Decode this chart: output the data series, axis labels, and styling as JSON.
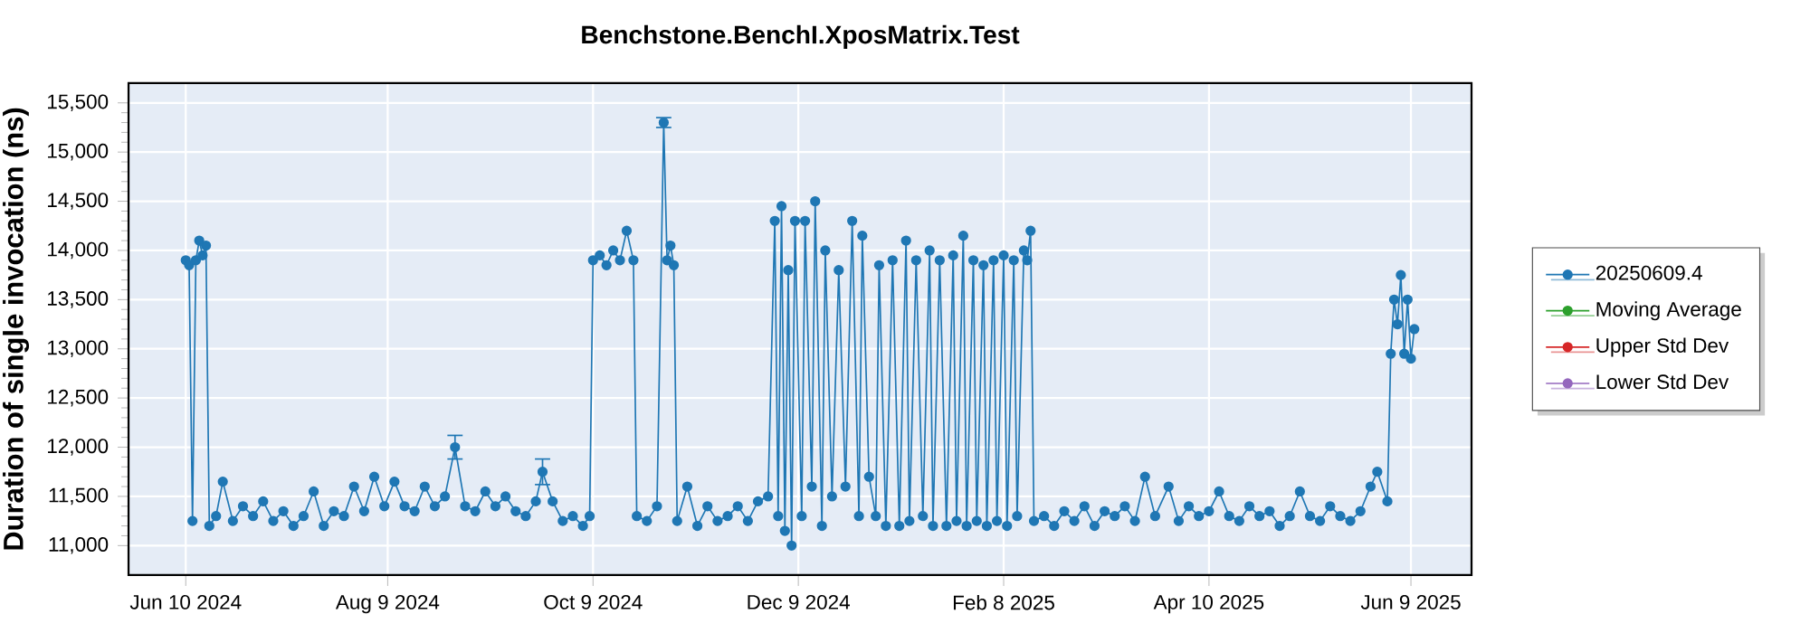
{
  "chart_data": {
    "type": "line",
    "title": "Benchstone.BenchI.XposMatrix.Test",
    "ylabel": "Duration of single invocation (ns)",
    "x": [
      "2024-06-10",
      "2024-06-11",
      "2024-06-12",
      "2024-06-13",
      "2024-06-14",
      "2024-06-15",
      "2024-06-16",
      "2024-06-17",
      "2024-06-19",
      "2024-06-21",
      "2024-06-24",
      "2024-06-27",
      "2024-06-30",
      "2024-07-03",
      "2024-07-06",
      "2024-07-09",
      "2024-07-12",
      "2024-07-15",
      "2024-07-18",
      "2024-07-21",
      "2024-07-24",
      "2024-07-27",
      "2024-07-30",
      "2024-08-02",
      "2024-08-05",
      "2024-08-08",
      "2024-08-11",
      "2024-08-14",
      "2024-08-17",
      "2024-08-20",
      "2024-08-23",
      "2024-08-26",
      "2024-08-29",
      "2024-09-01",
      "2024-09-04",
      "2024-09-07",
      "2024-09-10",
      "2024-09-13",
      "2024-09-16",
      "2024-09-19",
      "2024-09-22",
      "2024-09-24",
      "2024-09-27",
      "2024-09-30",
      "2024-10-03",
      "2024-10-06",
      "2024-10-08",
      "2024-10-09",
      "2024-10-11",
      "2024-10-13",
      "2024-10-15",
      "2024-10-17",
      "2024-10-19",
      "2024-10-21",
      "2024-10-22",
      "2024-10-25",
      "2024-10-28",
      "2024-10-30",
      "2024-10-31",
      "2024-11-01",
      "2024-11-02",
      "2024-11-03",
      "2024-11-06",
      "2024-11-09",
      "2024-11-12",
      "2024-11-15",
      "2024-11-18",
      "2024-11-21",
      "2024-11-24",
      "2024-11-27",
      "2024-11-30",
      "2024-12-02",
      "2024-12-03",
      "2024-12-04",
      "2024-12-05",
      "2024-12-06",
      "2024-12-07",
      "2024-12-08",
      "2024-12-10",
      "2024-12-11",
      "2024-12-13",
      "2024-12-14",
      "2024-12-16",
      "2024-12-17",
      "2024-12-19",
      "2024-12-21",
      "2024-12-23",
      "2024-12-25",
      "2024-12-27",
      "2024-12-28",
      "2024-12-30",
      "2025-01-01",
      "2025-01-02",
      "2025-01-04",
      "2025-01-06",
      "2025-01-08",
      "2025-01-10",
      "2025-01-11",
      "2025-01-13",
      "2025-01-15",
      "2025-01-17",
      "2025-01-18",
      "2025-01-20",
      "2025-01-22",
      "2025-01-24",
      "2025-01-25",
      "2025-01-27",
      "2025-01-28",
      "2025-01-30",
      "2025-01-31",
      "2025-02-02",
      "2025-02-03",
      "2025-02-05",
      "2025-02-06",
      "2025-02-08",
      "2025-02-09",
      "2025-02-11",
      "2025-02-12",
      "2025-02-14",
      "2025-02-15",
      "2025-02-16",
      "2025-02-17",
      "2025-02-20",
      "2025-02-23",
      "2025-02-26",
      "2025-03-01",
      "2025-03-04",
      "2025-03-07",
      "2025-03-10",
      "2025-03-13",
      "2025-03-16",
      "2025-03-19",
      "2025-03-22",
      "2025-03-25",
      "2025-03-29",
      "2025-04-01",
      "2025-04-04",
      "2025-04-07",
      "2025-04-10",
      "2025-04-13",
      "2025-04-16",
      "2025-04-19",
      "2025-04-22",
      "2025-04-25",
      "2025-04-28",
      "2025-05-01",
      "2025-05-04",
      "2025-05-07",
      "2025-05-10",
      "2025-05-13",
      "2025-05-16",
      "2025-05-19",
      "2025-05-22",
      "2025-05-25",
      "2025-05-28",
      "2025-05-30",
      "2025-06-02",
      "2025-06-03",
      "2025-06-04",
      "2025-06-05",
      "2025-06-06",
      "2025-06-07",
      "2025-06-08",
      "2025-06-09",
      "2025-06-10"
    ],
    "series": [
      {
        "name": "20250609.4",
        "color": "#1f77b4",
        "values": [
          13900,
          13850,
          11250,
          13900,
          14100,
          13950,
          14050,
          11200,
          11300,
          11650,
          11250,
          11400,
          11300,
          11450,
          11250,
          11350,
          11200,
          11300,
          11550,
          11200,
          11350,
          11300,
          11600,
          11350,
          11700,
          11400,
          11650,
          11400,
          11350,
          11600,
          11400,
          11500,
          12000,
          11400,
          11350,
          11550,
          11400,
          11500,
          11350,
          11300,
          11450,
          11750,
          11450,
          11250,
          11300,
          11200,
          11300,
          13900,
          13950,
          13850,
          14000,
          13900,
          14200,
          13900,
          11300,
          11250,
          11400,
          15300,
          13900,
          14050,
          13850,
          11250,
          11600,
          11200,
          11400,
          11250,
          11300,
          11400,
          11250,
          11450,
          11500,
          14300,
          11300,
          14450,
          11150,
          13800,
          11000,
          14300,
          11300,
          14300,
          11600,
          14500,
          11200,
          14000,
          11500,
          13800,
          11600,
          14300,
          11300,
          14150,
          11700,
          11300,
          13850,
          11200,
          13900,
          11200,
          14100,
          11250,
          13900,
          11300,
          14000,
          11200,
          13900,
          11200,
          13950,
          11250,
          14150,
          11200,
          13900,
          11250,
          13850,
          11200,
          13900,
          11250,
          13950,
          11200,
          13900,
          11300,
          14000,
          13900,
          14200,
          11250,
          11300,
          11200,
          11350,
          11250,
          11400,
          11200,
          11350,
          11300,
          11400,
          11250,
          11700,
          11300,
          11600,
          11250,
          11400,
          11300,
          11350,
          11550,
          11300,
          11250,
          11400,
          11300,
          11350,
          11200,
          11300,
          11550,
          11300,
          11250,
          11400,
          11300,
          11250,
          11350,
          11600,
          11750,
          11450,
          12950,
          13500,
          13250,
          13750,
          12950,
          13500,
          12900,
          13200
        ],
        "errors": [
          null,
          null,
          null,
          null,
          null,
          null,
          null,
          null,
          null,
          null,
          null,
          null,
          null,
          null,
          null,
          null,
          null,
          null,
          null,
          null,
          null,
          null,
          null,
          null,
          null,
          null,
          null,
          null,
          null,
          null,
          null,
          null,
          120,
          null,
          null,
          null,
          null,
          null,
          null,
          null,
          null,
          130,
          null,
          null,
          null,
          null,
          null,
          null,
          null,
          null,
          null,
          null,
          null,
          null,
          null,
          null,
          null,
          50,
          null,
          null,
          null,
          null,
          null,
          null,
          null,
          null,
          null,
          null,
          null,
          null,
          null,
          null,
          null,
          null,
          null,
          null,
          null,
          null,
          null,
          null,
          null,
          null,
          null,
          null,
          null,
          null,
          null,
          null,
          null,
          null,
          null,
          null,
          null,
          null,
          null,
          null,
          null,
          null,
          null,
          null,
          null,
          null,
          null,
          null,
          null,
          null,
          null,
          null,
          null,
          null,
          null,
          null,
          null,
          null,
          null,
          null,
          null,
          null,
          null,
          null,
          null,
          null,
          null,
          null,
          null,
          null,
          null,
          null,
          null,
          null,
          null,
          null,
          null,
          null,
          null,
          null,
          null,
          null,
          null,
          null,
          null,
          null,
          null,
          null,
          null,
          null,
          null,
          null,
          null,
          null,
          null,
          null,
          null,
          null,
          null,
          null,
          null,
          null,
          null,
          null,
          null,
          null,
          null,
          null,
          null
        ]
      },
      {
        "name": "Moving Average",
        "color": "#2ca02c",
        "values": [
          null,
          null,
          null,
          null,
          null,
          null,
          null,
          null,
          null,
          null,
          null,
          null,
          null,
          null,
          null,
          null,
          null,
          null,
          null,
          null,
          null,
          null,
          null,
          null,
          null,
          null,
          null,
          null,
          null,
          null,
          null,
          null,
          null,
          null,
          null,
          null,
          null,
          null,
          null,
          null,
          null,
          null,
          null,
          null,
          null,
          null,
          null,
          null,
          null,
          null,
          null,
          null,
          null,
          null,
          null,
          null,
          null,
          null,
          null,
          null,
          null,
          null,
          null,
          null,
          null,
          null,
          null,
          null,
          null,
          null,
          null,
          null,
          null,
          null,
          null,
          null,
          null,
          null,
          null,
          null,
          null,
          null,
          null,
          null,
          null,
          null,
          null,
          null,
          null,
          null,
          null,
          null,
          null,
          null,
          null,
          null,
          null,
          null,
          null,
          null,
          null,
          null,
          null,
          null,
          null,
          null,
          null,
          null,
          null,
          null,
          null,
          null,
          null,
          null,
          null,
          null,
          null,
          null,
          null,
          null,
          null,
          null,
          null,
          null,
          null,
          null,
          null,
          null,
          null,
          null,
          null,
          null,
          null,
          null,
          null,
          null,
          null,
          null,
          null,
          null,
          null,
          null,
          null,
          null,
          null,
          null,
          null,
          null,
          null,
          null,
          null,
          null,
          null,
          null,
          null,
          null,
          null,
          null,
          null,
          null,
          null,
          null,
          null,
          null,
          null
        ]
      },
      {
        "name": "Upper Std Dev",
        "color": "#d62728",
        "values": [
          null,
          null,
          null,
          null,
          null,
          null,
          null,
          null,
          null,
          null,
          null,
          null,
          null,
          null,
          null,
          null,
          null,
          null,
          null,
          null,
          null,
          null,
          null,
          null,
          null,
          null,
          null,
          null,
          null,
          null,
          null,
          null,
          null,
          null,
          null,
          null,
          null,
          null,
          null,
          null,
          null,
          null,
          null,
          null,
          null,
          null,
          null,
          null,
          null,
          null,
          null,
          null,
          null,
          null,
          null,
          null,
          null,
          null,
          null,
          null,
          null,
          null,
          null,
          null,
          null,
          null,
          null,
          null,
          null,
          null,
          null,
          null,
          null,
          null,
          null,
          null,
          null,
          null,
          null,
          null,
          null,
          null,
          null,
          null,
          null,
          null,
          null,
          null,
          null,
          null,
          null,
          null,
          null,
          null,
          null,
          null,
          null,
          null,
          null,
          null,
          null,
          null,
          null,
          null,
          null,
          null,
          null,
          null,
          null,
          null,
          null,
          null,
          null,
          null,
          null,
          null,
          null,
          null,
          null,
          null,
          null,
          null,
          null,
          null,
          null,
          null,
          null,
          null,
          null,
          null,
          null,
          null,
          null,
          null,
          null,
          null,
          null,
          null,
          null,
          null,
          null,
          null,
          null,
          null,
          null,
          null,
          null,
          null,
          null,
          null,
          null,
          null,
          null,
          null,
          null,
          null,
          null,
          null,
          null,
          null,
          null,
          null,
          null,
          null,
          null
        ]
      },
      {
        "name": "Lower Std Dev",
        "color": "#9467bd",
        "values": [
          null,
          null,
          null,
          null,
          null,
          null,
          null,
          null,
          null,
          null,
          null,
          null,
          null,
          null,
          null,
          null,
          null,
          null,
          null,
          null,
          null,
          null,
          null,
          null,
          null,
          null,
          null,
          null,
          null,
          null,
          null,
          null,
          null,
          null,
          null,
          null,
          null,
          null,
          null,
          null,
          null,
          null,
          null,
          null,
          null,
          null,
          null,
          null,
          null,
          null,
          null,
          null,
          null,
          null,
          null,
          null,
          null,
          null,
          null,
          null,
          null,
          null,
          null,
          null,
          null,
          null,
          null,
          null,
          null,
          null,
          null,
          null,
          null,
          null,
          null,
          null,
          null,
          null,
          null,
          null,
          null,
          null,
          null,
          null,
          null,
          null,
          null,
          null,
          null,
          null,
          null,
          null,
          null,
          null,
          null,
          null,
          null,
          null,
          null,
          null,
          null,
          null,
          null,
          null,
          null,
          null,
          null,
          null,
          null,
          null,
          null,
          null,
          null,
          null,
          null,
          null,
          null,
          null,
          null,
          null,
          null,
          null,
          null,
          null,
          null,
          null,
          null,
          null,
          null,
          null,
          null,
          null,
          null,
          null,
          null,
          null,
          null,
          null,
          null,
          null,
          null,
          null,
          null,
          null,
          null,
          null,
          null,
          null,
          null,
          null,
          null,
          null,
          null,
          null,
          null,
          null,
          null,
          null,
          null,
          null,
          null,
          null,
          null,
          null,
          null
        ]
      }
    ],
    "xlim": [
      "2024-05-24",
      "2025-06-27"
    ],
    "xticks": [
      {
        "value": "2024-06-10",
        "label": "Jun 10 2024"
      },
      {
        "value": "2024-08-09",
        "label": "Aug 9 2024"
      },
      {
        "value": "2024-10-09",
        "label": "Oct 9 2024"
      },
      {
        "value": "2024-12-09",
        "label": "Dec 9 2024"
      },
      {
        "value": "2025-02-08",
        "label": "Feb 8 2025"
      },
      {
        "value": "2025-04-10",
        "label": "Apr 10 2025"
      },
      {
        "value": "2025-06-09",
        "label": "Jun 9 2025"
      }
    ],
    "ylim": [
      10700,
      15700
    ],
    "yticks": [
      {
        "value": 11000,
        "label": "11,000"
      },
      {
        "value": 11500,
        "label": "11,500"
      },
      {
        "value": 12000,
        "label": "12,000"
      },
      {
        "value": 12500,
        "label": "12,500"
      },
      {
        "value": 13000,
        "label": "13,000"
      },
      {
        "value": 13500,
        "label": "13,500"
      },
      {
        "value": 14000,
        "label": "14,000"
      },
      {
        "value": 14500,
        "label": "14,500"
      },
      {
        "value": 15000,
        "label": "15,000"
      },
      {
        "value": 15500,
        "label": "15,500"
      }
    ],
    "grid": true,
    "legend": "right",
    "marker": "circle",
    "line_style": "solid"
  }
}
